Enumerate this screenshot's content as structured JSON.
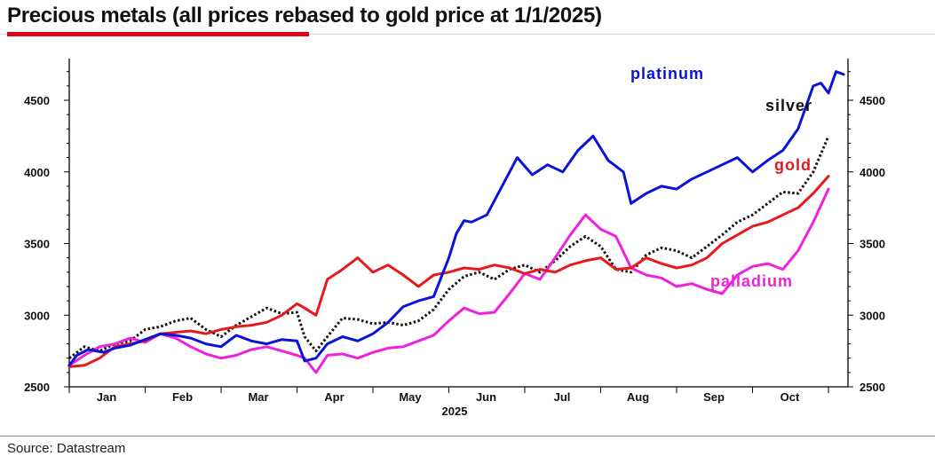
{
  "title": "Precious metals (all prices rebased to gold price at 1/1/2025)",
  "source": "Source: Datastream",
  "colors": {
    "accent": "#e2001a",
    "platinum": "#0a14d8",
    "silver": "#111111",
    "gold": "#e8191b",
    "palladium": "#ee22dd"
  },
  "chart_data": {
    "type": "line",
    "title": "Precious metals (all prices rebased to gold price at 1/1/2025)",
    "xlabel": "2025",
    "ylabel": "",
    "ylim": [
      2500,
      4800
    ],
    "xlim": [
      0,
      10.25
    ],
    "y_ticks": [
      "2500",
      "3000",
      "3500",
      "4000",
      "4500"
    ],
    "y_ticks_right": [
      "2500",
      "3000",
      "3500",
      "4000",
      "4500"
    ],
    "x_ticks": [
      "Jan",
      "Feb",
      "Mar",
      "Apr",
      "May",
      "Jun",
      "Jul",
      "Aug",
      "Sep",
      "Oct"
    ],
    "x_year": "2025",
    "grid": false,
    "series": [
      {
        "name": "platinum",
        "label": "platinum",
        "color": "#0a14d8",
        "style": "solid",
        "x": [
          0,
          0.1,
          0.25,
          0.45,
          0.6,
          0.8,
          1.0,
          1.2,
          1.4,
          1.6,
          1.8,
          2.0,
          2.2,
          2.4,
          2.6,
          2.8,
          3.0,
          3.1,
          3.25,
          3.4,
          3.6,
          3.8,
          4.0,
          4.2,
          4.4,
          4.6,
          4.8,
          5.0,
          5.1,
          5.2,
          5.3,
          5.5,
          5.7,
          5.9,
          6.1,
          6.3,
          6.5,
          6.7,
          6.9,
          7.1,
          7.3,
          7.4,
          7.6,
          7.8,
          8.0,
          8.2,
          8.4,
          8.6,
          8.8,
          9.0,
          9.2,
          9.4,
          9.6,
          9.8,
          9.9,
          10.0,
          10.1,
          10.2
        ],
        "values": [
          2650,
          2720,
          2760,
          2740,
          2770,
          2790,
          2830,
          2870,
          2860,
          2840,
          2800,
          2780,
          2860,
          2820,
          2800,
          2830,
          2820,
          2680,
          2700,
          2800,
          2850,
          2820,
          2870,
          2950,
          3060,
          3100,
          3130,
          3400,
          3570,
          3660,
          3650,
          3700,
          3900,
          4100,
          3980,
          4050,
          4000,
          4150,
          4250,
          4080,
          4000,
          3780,
          3850,
          3900,
          3880,
          3950,
          4000,
          4050,
          4100,
          4000,
          4080,
          4150,
          4300,
          4600,
          4620,
          4550,
          4700,
          4680
        ]
      },
      {
        "name": "silver",
        "label": "silver",
        "color": "#111111",
        "style": "dotted",
        "x": [
          0,
          0.2,
          0.4,
          0.6,
          0.8,
          1.0,
          1.2,
          1.4,
          1.6,
          1.8,
          2.0,
          2.2,
          2.4,
          2.6,
          2.8,
          3.0,
          3.1,
          3.25,
          3.4,
          3.6,
          3.8,
          4.0,
          4.2,
          4.4,
          4.6,
          4.8,
          5.0,
          5.2,
          5.4,
          5.6,
          5.8,
          6.0,
          6.2,
          6.4,
          6.6,
          6.8,
          7.0,
          7.2,
          7.4,
          7.6,
          7.8,
          8.0,
          8.2,
          8.4,
          8.6,
          8.8,
          9.0,
          9.2,
          9.4,
          9.6,
          9.8,
          10.0
        ],
        "values": [
          2700,
          2780,
          2750,
          2800,
          2820,
          2900,
          2920,
          2960,
          2980,
          2900,
          2850,
          2930,
          2990,
          3050,
          3010,
          3020,
          2850,
          2750,
          2850,
          2980,
          2970,
          2940,
          2950,
          2930,
          2960,
          3040,
          3180,
          3270,
          3300,
          3250,
          3320,
          3350,
          3300,
          3380,
          3480,
          3550,
          3480,
          3320,
          3300,
          3420,
          3470,
          3450,
          3400,
          3480,
          3560,
          3650,
          3700,
          3780,
          3860,
          3850,
          4000,
          4250
        ]
      },
      {
        "name": "gold",
        "label": "gold",
        "color": "#e8191b",
        "style": "solid",
        "x": [
          0,
          0.2,
          0.4,
          0.6,
          0.8,
          1.0,
          1.2,
          1.4,
          1.6,
          1.8,
          2.0,
          2.2,
          2.4,
          2.6,
          2.8,
          3.0,
          3.1,
          3.25,
          3.4,
          3.6,
          3.8,
          4.0,
          4.2,
          4.4,
          4.6,
          4.8,
          5.0,
          5.2,
          5.4,
          5.6,
          5.8,
          6.0,
          6.2,
          6.4,
          6.6,
          6.8,
          7.0,
          7.2,
          7.4,
          7.6,
          7.8,
          8.0,
          8.2,
          8.4,
          8.6,
          8.8,
          9.0,
          9.2,
          9.4,
          9.6,
          9.8,
          10.0
        ],
        "values": [
          2640,
          2650,
          2700,
          2780,
          2800,
          2820,
          2870,
          2880,
          2890,
          2870,
          2900,
          2920,
          2930,
          2950,
          3000,
          3080,
          3050,
          3000,
          3250,
          3320,
          3400,
          3300,
          3350,
          3280,
          3200,
          3280,
          3300,
          3330,
          3320,
          3350,
          3330,
          3290,
          3320,
          3300,
          3350,
          3380,
          3400,
          3320,
          3330,
          3400,
          3360,
          3330,
          3350,
          3400,
          3500,
          3560,
          3620,
          3650,
          3700,
          3750,
          3850,
          3970
        ]
      },
      {
        "name": "palladium",
        "label": "palladium",
        "color": "#ee22dd",
        "style": "solid",
        "x": [
          0,
          0.2,
          0.4,
          0.6,
          0.8,
          1.0,
          1.2,
          1.4,
          1.6,
          1.8,
          2.0,
          2.2,
          2.4,
          2.6,
          2.8,
          3.0,
          3.1,
          3.25,
          3.4,
          3.6,
          3.8,
          4.0,
          4.2,
          4.4,
          4.6,
          4.8,
          5.0,
          5.2,
          5.4,
          5.6,
          5.8,
          6.0,
          6.2,
          6.4,
          6.6,
          6.8,
          7.0,
          7.2,
          7.4,
          7.6,
          7.8,
          8.0,
          8.2,
          8.4,
          8.6,
          8.8,
          9.0,
          9.2,
          9.4,
          9.6,
          9.8,
          10.0
        ],
        "values": [
          2650,
          2720,
          2780,
          2800,
          2840,
          2810,
          2870,
          2840,
          2780,
          2730,
          2700,
          2720,
          2760,
          2780,
          2750,
          2720,
          2700,
          2600,
          2720,
          2730,
          2700,
          2740,
          2770,
          2780,
          2820,
          2860,
          2960,
          3050,
          3010,
          3020,
          3150,
          3290,
          3250,
          3400,
          3560,
          3700,
          3600,
          3550,
          3330,
          3280,
          3260,
          3200,
          3220,
          3180,
          3150,
          3280,
          3340,
          3360,
          3320,
          3450,
          3650,
          3880
        ]
      }
    ],
    "series_labels": [
      "platinum",
      "silver",
      "gold",
      "palladium"
    ]
  }
}
